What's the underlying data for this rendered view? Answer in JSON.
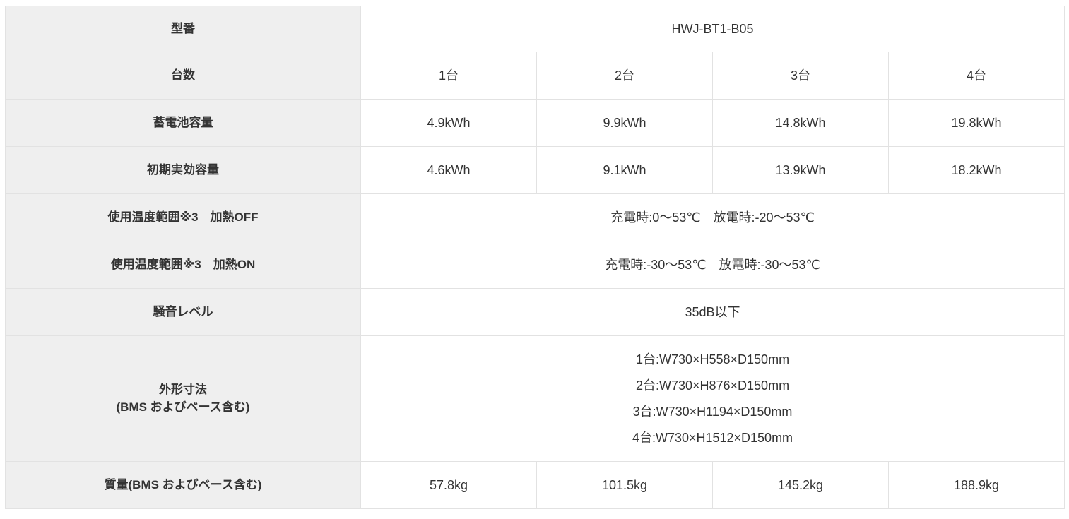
{
  "colors": {
    "header_bg": "#efefef",
    "cell_bg": "#ffffff",
    "border": "#e2e2e2",
    "text": "#333333"
  },
  "table": {
    "model_row": {
      "label": "型番",
      "value": "HWJ-BT1-B05"
    },
    "units_row": {
      "label": "台数",
      "values": [
        "1台",
        "2台",
        "3台",
        "4台"
      ]
    },
    "capacity_row": {
      "label": "蓄電池容量",
      "values": [
        "4.9kWh",
        "9.9kWh",
        "14.8kWh",
        "19.8kWh"
      ]
    },
    "initial_capacity_row": {
      "label": "初期実効容量",
      "values": [
        "4.6kWh",
        "9.1kWh",
        "13.9kWh",
        "18.2kWh"
      ]
    },
    "temp_range_off_row": {
      "label": "使用温度範囲※3　加熱OFF",
      "value": "充電時:0〜53℃　放電時:-20〜53℃"
    },
    "temp_range_on_row": {
      "label": "使用温度範囲※3　加熱ON",
      "value": "充電時:-30〜53℃　放電時:-30〜53℃"
    },
    "noise_row": {
      "label": "騒音レベル",
      "value": "35dB以下"
    },
    "dimensions_row": {
      "label_line1": "外形寸法",
      "label_line2": "(BMS およびベース含む)",
      "lines": [
        "1台:W730×H558×D150mm",
        "2台:W730×H876×D150mm",
        "3台:W730×H1194×D150mm",
        "4台:W730×H1512×D150mm"
      ]
    },
    "weight_row": {
      "label": "質量(BMS およびベース含む)",
      "values": [
        "57.8kg",
        "101.5kg",
        "145.2kg",
        "188.9kg"
      ]
    }
  }
}
